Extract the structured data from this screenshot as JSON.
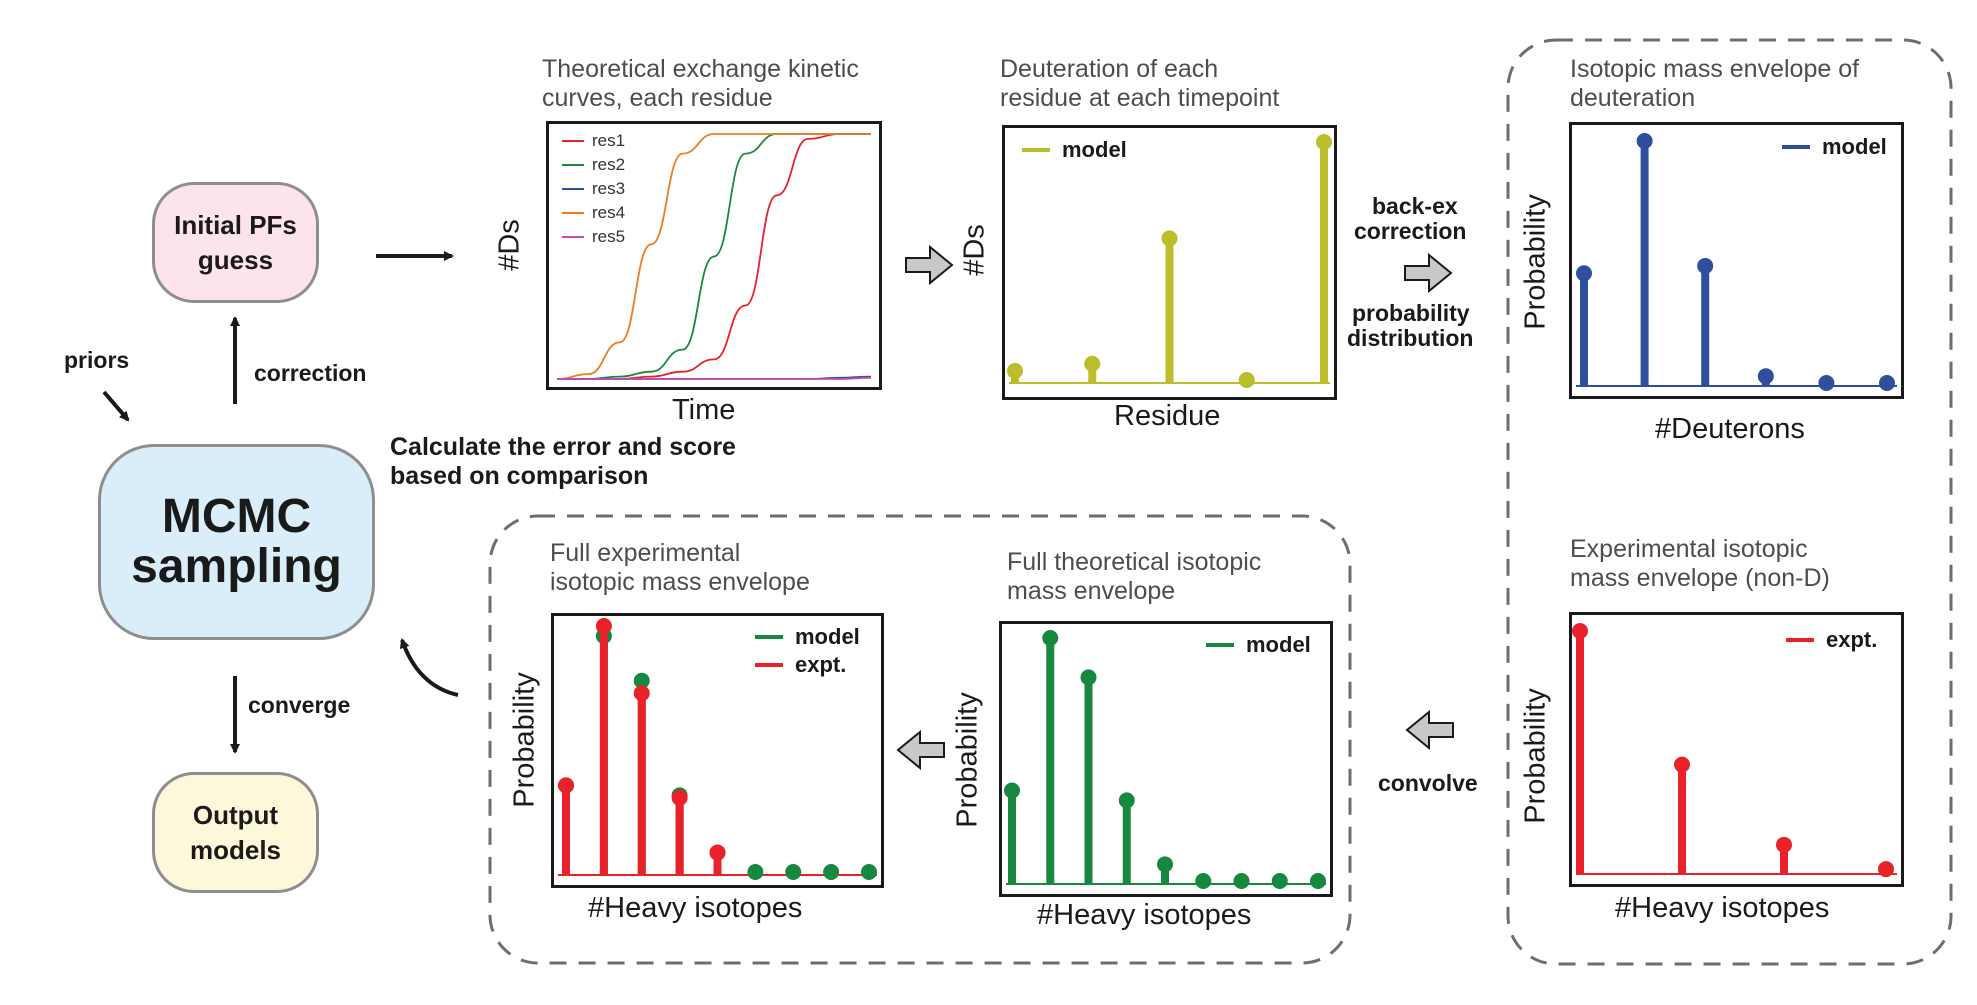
{
  "colors": {
    "model_yellow": "#bcbd2c",
    "model_blue": "#2f4f9e",
    "model_green": "#16893f",
    "expt_red": "#e8212a",
    "res1": "#e8212a",
    "res2": "#16893f",
    "res3": "#2f4f9e",
    "res4": "#f07c1e",
    "res5": "#c64bb4",
    "initial_fill": "#fde4ec",
    "mcmc_fill": "#d9eef9",
    "output_fill": "#fdf8d9",
    "box_border": "#8e8e8e",
    "dash": "#6e6e6e",
    "block_arrow_fill": "#c8c8c8"
  },
  "nodes": {
    "initial": [
      "Initial PFs",
      "guess"
    ],
    "mcmc": [
      "MCMC",
      "sampling"
    ],
    "output": [
      "Output",
      "models"
    ]
  },
  "labels": {
    "priors": "priors",
    "correction": "correction",
    "converge": "converge",
    "calculate": [
      "Calculate the error and score",
      "based on comparison"
    ],
    "backex": [
      "back-ex",
      "correction"
    ],
    "probdist": [
      "probability",
      "distribution"
    ],
    "convolve": "convolve"
  },
  "panels": {
    "kinetic": {
      "caption": [
        "Theoretical exchange kinetic",
        "curves, each residue"
      ],
      "xlabel": "Time",
      "ylabel": "#Ds",
      "legend": [
        "res1",
        "res2",
        "res3",
        "res4",
        "res5"
      ]
    },
    "deuteration": {
      "caption": [
        "Deuteration of each",
        "residue at each timepoint"
      ],
      "xlabel": "Residue",
      "ylabel": "#Ds",
      "legend": "model"
    },
    "isotopic_d": {
      "caption": [
        "Isotopic mass envelope of",
        "deuteration"
      ],
      "xlabel": "#Deuterons",
      "ylabel": "Probability",
      "legend": "model"
    },
    "expt_nond": {
      "caption": [
        "Experimental isotopic",
        "mass envelope (non-D)"
      ],
      "xlabel": "#Heavy isotopes",
      "ylabel": "Probability",
      "legend": "expt."
    },
    "theoretical": {
      "caption": [
        "Full theoretical isotopic",
        "mass envelope"
      ],
      "xlabel": "#Heavy isotopes",
      "ylabel": "Probability",
      "legend": "model"
    },
    "experimental": {
      "caption": [
        "Full experimental",
        "isotopic mass envelope"
      ],
      "xlabel": "#Heavy isotopes",
      "ylabel": "Probability",
      "legend_model": "model",
      "legend_expt": "expt."
    }
  },
  "chart_data": [
    {
      "type": "line",
      "title": "Theoretical exchange kinetic curves, each residue",
      "xlabel": "Time",
      "ylabel": "#Ds",
      "x": [
        0,
        0.1,
        0.2,
        0.3,
        0.4,
        0.5,
        0.6,
        0.7,
        0.8,
        0.9,
        1.0
      ],
      "series": [
        {
          "name": "res1",
          "values": [
            0,
            0,
            0,
            0.01,
            0.03,
            0.08,
            0.3,
            0.75,
            0.98,
            1.0,
            1.0
          ]
        },
        {
          "name": "res2",
          "values": [
            0,
            0,
            0.01,
            0.03,
            0.12,
            0.5,
            0.92,
            1.0,
            1.0,
            1.0,
            1.0
          ]
        },
        {
          "name": "res3",
          "values": [
            0,
            0,
            0,
            0,
            0,
            0,
            0,
            0,
            0,
            0.005,
            0.01
          ]
        },
        {
          "name": "res4",
          "values": [
            0,
            0.02,
            0.15,
            0.55,
            0.92,
            1.0,
            1.0,
            1.0,
            1.0,
            1.0,
            1.0
          ]
        },
        {
          "name": "res5",
          "values": [
            0,
            0,
            0,
            0,
            0,
            0,
            0,
            0,
            0,
            0,
            0.005
          ]
        }
      ],
      "ylim": [
        0,
        1
      ]
    },
    {
      "type": "bar",
      "title": "Deuteration of each residue at each timepoint",
      "xlabel": "Residue",
      "ylabel": "#Ds",
      "categories": [
        1,
        2,
        3,
        4,
        5
      ],
      "series": [
        {
          "name": "model",
          "values": [
            0.05,
            0.08,
            0.6,
            0.0,
            1.0
          ]
        }
      ],
      "ylim": [
        0,
        1
      ]
    },
    {
      "type": "bar",
      "title": "Isotopic mass envelope of deuteration",
      "xlabel": "#Deuterons",
      "ylabel": "Probability",
      "categories": [
        0,
        1,
        2,
        3,
        4,
        5
      ],
      "series": [
        {
          "name": "model",
          "values": [
            0.46,
            1.0,
            0.49,
            0.04,
            0.0,
            0.0
          ]
        }
      ],
      "ylim": [
        0,
        1
      ]
    },
    {
      "type": "bar",
      "title": "Experimental isotopic mass envelope (non-D)",
      "xlabel": "#Heavy isotopes",
      "ylabel": "Probability",
      "categories": [
        0,
        1,
        2,
        3
      ],
      "series": [
        {
          "name": "expt.",
          "values": [
            1.0,
            0.45,
            0.12,
            0.02
          ]
        }
      ],
      "ylim": [
        0,
        1
      ]
    },
    {
      "type": "bar",
      "title": "Full theoretical isotopic mass envelope",
      "xlabel": "#Heavy isotopes",
      "ylabel": "Probability",
      "categories": [
        0,
        1,
        2,
        3,
        4,
        5,
        6,
        7,
        8
      ],
      "series": [
        {
          "name": "model",
          "values": [
            0.38,
            1.0,
            0.84,
            0.34,
            0.08,
            0.01,
            0.0,
            0.0,
            0.0
          ]
        }
      ],
      "ylim": [
        0,
        1
      ]
    },
    {
      "type": "bar",
      "title": "Full experimental isotopic mass envelope",
      "xlabel": "#Heavy isotopes",
      "ylabel": "Probability",
      "categories": [
        0,
        1,
        2,
        3,
        4,
        5,
        6,
        7,
        8
      ],
      "series": [
        {
          "name": "model",
          "values": [
            0.36,
            0.96,
            0.78,
            0.32,
            0.09,
            0.01,
            0.0,
            0.0,
            0.0
          ]
        },
        {
          "name": "expt.",
          "values": [
            0.36,
            1.0,
            0.73,
            0.31,
            0.09,
            null,
            null,
            null,
            null
          ]
        }
      ],
      "ylim": [
        0,
        1
      ]
    }
  ]
}
